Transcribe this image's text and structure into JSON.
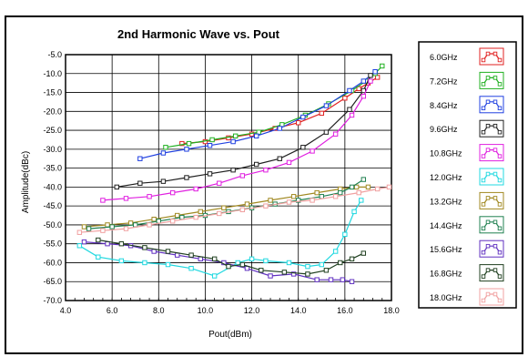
{
  "chart_data": {
    "type": "line",
    "title": "2nd Harmonic Wave vs. Pout",
    "xlabel": "Pout(dBm)",
    "ylabel": "Amplitude(dBc)",
    "xlim": [
      4.0,
      18.0
    ],
    "ylim": [
      -70.0,
      -5.0
    ],
    "x_ticks": [
      4.0,
      6.0,
      8.0,
      10.0,
      12.0,
      14.0,
      16.0,
      18.0
    ],
    "x_tick_labels": [
      "4.0",
      "6.0",
      "8.0",
      "10.0",
      "12.0",
      "14.0",
      "16.0",
      "18.0"
    ],
    "y_ticks": [
      -5,
      -10,
      -15,
      -20,
      -25,
      -30,
      -35,
      -40,
      -45,
      -50,
      -55,
      -60,
      -65,
      -70
    ],
    "y_tick_labels": [
      "-5.0",
      "-10.0",
      "-15.0",
      "-20.0",
      "-25.0",
      "-30.0",
      "-35.0",
      "-40.0",
      "-45.0",
      "-50.0",
      "-55.0",
      "-60.0",
      "-65.0",
      "-70.0"
    ],
    "grid": true,
    "legend_position": "right",
    "series": [
      {
        "name": "6.0GHz",
        "color": "#e02020",
        "marker": "square",
        "x": [
          9.0,
          10.0,
          11.0,
          12.0,
          13.0,
          14.0,
          15.0,
          16.0,
          16.6,
          17.0,
          17.4
        ],
        "y": [
          -28.5,
          -28.0,
          -27.0,
          -26.0,
          -24.5,
          -23.0,
          -20.5,
          -16.5,
          -14.0,
          -12.5,
          -11.0
        ]
      },
      {
        "name": "7.2GHz",
        "color": "#20b020",
        "marker": "square",
        "x": [
          8.3,
          9.3,
          10.3,
          11.3,
          12.3,
          13.3,
          14.3,
          15.3,
          16.3,
          16.9,
          17.3,
          17.6
        ],
        "y": [
          -29.5,
          -28.5,
          -27.5,
          -26.5,
          -25.5,
          -23.5,
          -21.0,
          -18.0,
          -14.5,
          -12.0,
          -10.0,
          -8.0
        ]
      },
      {
        "name": "8.4GHz",
        "color": "#2040e0",
        "marker": "square",
        "x": [
          7.2,
          8.2,
          9.2,
          10.2,
          11.2,
          12.2,
          13.2,
          14.2,
          15.2,
          16.2,
          16.8,
          17.3
        ],
        "y": [
          -32.5,
          -31.0,
          -30.0,
          -29.0,
          -28.0,
          -26.5,
          -24.5,
          -21.5,
          -18.5,
          -14.5,
          -12.0,
          -9.5
        ]
      },
      {
        "name": "9.6GHz",
        "color": "#202020",
        "marker": "square",
        "x": [
          6.2,
          7.2,
          8.2,
          9.2,
          10.2,
          11.2,
          12.2,
          13.2,
          14.2,
          15.2,
          16.2,
          16.8,
          17.1
        ],
        "y": [
          -40.0,
          -39.0,
          -38.5,
          -37.5,
          -36.5,
          -35.5,
          -34.0,
          -32.5,
          -29.5,
          -25.5,
          -19.5,
          -14.5,
          -10.5
        ]
      },
      {
        "name": "10.8GHz",
        "color": "#e020e0",
        "marker": "square",
        "x": [
          5.6,
          6.6,
          7.6,
          8.6,
          9.6,
          10.6,
          11.6,
          12.6,
          13.6,
          14.6,
          15.6,
          16.3,
          16.8,
          17.1
        ],
        "y": [
          -43.5,
          -43.0,
          -42.5,
          -41.5,
          -40.5,
          -39.0,
          -37.0,
          -35.5,
          -33.5,
          -30.5,
          -26.0,
          -21.0,
          -16.0,
          -12.0
        ]
      },
      {
        "name": "12.0GHz",
        "color": "#20d8e0",
        "marker": "square",
        "x": [
          4.6,
          5.4,
          6.4,
          7.4,
          8.4,
          9.4,
          10.4,
          11.4,
          12.0,
          12.6,
          13.6,
          14.4,
          15.0,
          15.6,
          16.0,
          16.4,
          16.7
        ],
        "y": [
          -55.5,
          -58.5,
          -59.5,
          -60.0,
          -60.5,
          -61.5,
          -63.5,
          -60.0,
          -59.0,
          -59.5,
          -60.0,
          -61.0,
          -60.5,
          -57.0,
          -52.5,
          -46.5,
          -43.5
        ]
      },
      {
        "name": "13.2GHz",
        "color": "#a08820",
        "marker": "square",
        "x": [
          4.8,
          5.8,
          6.8,
          7.8,
          8.8,
          9.8,
          10.8,
          11.8,
          12.8,
          13.8,
          14.8,
          15.8,
          16.5,
          17.0
        ],
        "y": [
          -50.5,
          -50.0,
          -49.5,
          -48.5,
          -47.5,
          -46.5,
          -45.5,
          -44.5,
          -43.5,
          -42.5,
          -41.5,
          -40.5,
          -40.0,
          -40.0
        ]
      },
      {
        "name": "14.4GHz",
        "color": "#208050",
        "marker": "square",
        "x": [
          5.0,
          6.0,
          7.0,
          8.0,
          9.0,
          10.0,
          11.0,
          12.0,
          13.0,
          14.0,
          15.0,
          15.8,
          16.3,
          16.8
        ],
        "y": [
          -51.0,
          -50.5,
          -50.0,
          -49.0,
          -48.0,
          -47.5,
          -46.5,
          -45.5,
          -44.5,
          -43.5,
          -42.5,
          -41.5,
          -40.0,
          -38.0
        ]
      },
      {
        "name": "15.6GHz",
        "color": "#6030c0",
        "marker": "square",
        "x": [
          4.8,
          5.8,
          6.8,
          7.8,
          8.8,
          9.8,
          10.8,
          11.8,
          12.8,
          13.8,
          14.8,
          15.4,
          15.9,
          16.3
        ],
        "y": [
          -54.5,
          -55.0,
          -55.5,
          -57.0,
          -58.0,
          -59.0,
          -60.0,
          -61.5,
          -63.5,
          -63.0,
          -64.5,
          -64.5,
          -64.5,
          -65.0
        ]
      },
      {
        "name": "16.8GHz",
        "color": "#204020",
        "marker": "square",
        "x": [
          5.4,
          6.4,
          7.4,
          8.4,
          9.4,
          10.4,
          11.0,
          11.6,
          12.4,
          13.4,
          14.4,
          15.2,
          15.8,
          16.3,
          16.8
        ],
        "y": [
          -54.0,
          -55.0,
          -56.0,
          -57.0,
          -58.0,
          -59.0,
          -61.0,
          -60.5,
          -62.0,
          -62.5,
          -63.0,
          -62.0,
          -60.0,
          -59.0,
          -57.5
        ]
      },
      {
        "name": "18.0GHz",
        "color": "#f0a0a0",
        "marker": "square",
        "x": [
          4.6,
          5.6,
          6.6,
          7.6,
          8.6,
          9.6,
          10.6,
          11.6,
          12.6,
          13.6,
          14.6,
          15.6,
          16.6,
          17.4,
          17.9
        ],
        "y": [
          -52.0,
          -51.5,
          -51.0,
          -50.0,
          -49.0,
          -48.0,
          -47.0,
          -46.0,
          -45.0,
          -44.0,
          -43.5,
          -42.5,
          -41.5,
          -40.5,
          -40.0
        ]
      }
    ]
  }
}
